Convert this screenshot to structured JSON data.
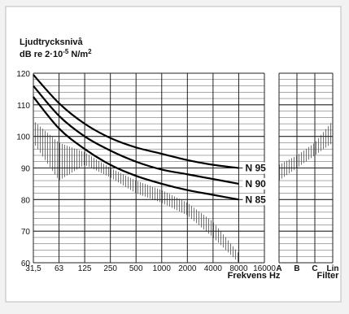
{
  "chart_data": {
    "type": "line",
    "title_line1": "Ljudtrycksnivå",
    "title_line2_prefix": "dB  re 2·10",
    "title_line2_exp": "-5",
    "title_line2_unit": "N/m",
    "title_line2_unit_exp": "2",
    "xlabel": "Frekvens Hz",
    "filter_label": "Filter",
    "ylim": [
      60,
      120
    ],
    "y_ticks": [
      60,
      70,
      80,
      90,
      100,
      110,
      120
    ],
    "x_ticks": [
      "31,5",
      "63",
      "125",
      "250",
      "500",
      "1000",
      "2000",
      "4000",
      "8000",
      "16000"
    ],
    "filter_ticks": [
      "A",
      "B",
      "C",
      "Lin"
    ],
    "x": [
      31.5,
      63,
      125,
      250,
      500,
      1000,
      2000,
      4000,
      8000
    ],
    "series": [
      {
        "name": "N 95",
        "values": [
          119.5,
          110.5,
          104,
          99.5,
          96.5,
          94.5,
          92.5,
          91,
          90
        ]
      },
      {
        "name": "N 90",
        "values": [
          116,
          106.5,
          100,
          95.5,
          92,
          89.5,
          88,
          86.5,
          85
        ]
      },
      {
        "name": "N 85",
        "values": [
          112.5,
          102.5,
          96,
          91,
          87.5,
          85,
          83,
          81.5,
          80
        ]
      }
    ],
    "shaded_band_upper": [
      105,
      98,
      95,
      90,
      86,
      83,
      79,
      73,
      63
    ],
    "shaded_band_lower": [
      98,
      86,
      91,
      87,
      82,
      79,
      75,
      68,
      60
    ],
    "filter_band_upper": [
      91,
      94,
      98,
      105
    ],
    "filter_band_lower": [
      86,
      90,
      94,
      98
    ]
  }
}
